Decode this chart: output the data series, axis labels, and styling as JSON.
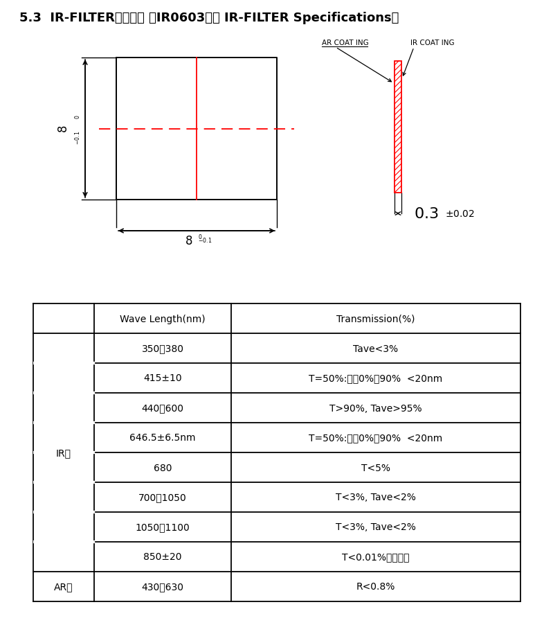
{
  "title": "5.3  IR-FILTER规格参数 （IR0603）（ IR-FILTER Specifications）",
  "bg_color": "#ffffff",
  "table_data": [
    [
      "",
      "Wave Length(nm)",
      "Transmission(%)"
    ],
    [
      "",
      "350～380",
      "Tave<3%"
    ],
    [
      "",
      "415±10",
      "T=50%:斜獱0%～90%  <20nm"
    ],
    [
      "IR面",
      "440～600",
      "T>90%, Tave>95%"
    ],
    [
      "",
      "646.5±6.5nm",
      "T=50%:斜獱0%～90%  <20nm"
    ],
    [
      "",
      "680",
      "T<5%"
    ],
    [
      "",
      "700～1050",
      "T<3%, Tave<2%"
    ],
    [
      "",
      "1050～1100",
      "T<3%, Tave<2%"
    ],
    [
      "",
      "850±20",
      "T<0.01%重点保证"
    ],
    [
      "AR面",
      "430～630",
      "R<0.8%"
    ]
  ]
}
